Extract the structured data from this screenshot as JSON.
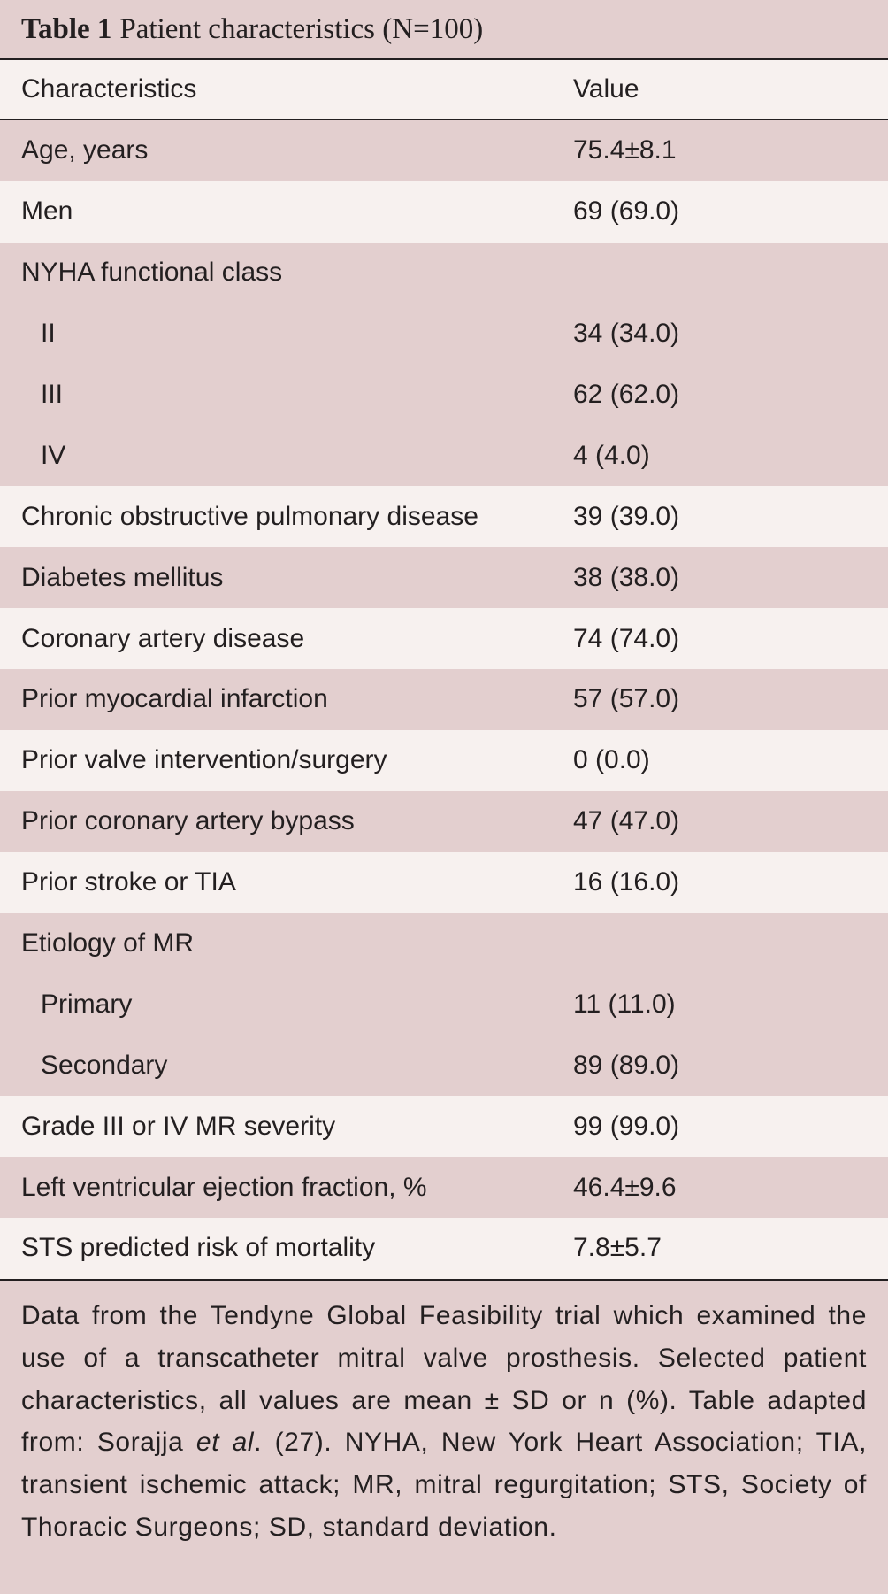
{
  "table": {
    "title_label": "Table 1",
    "title_text": "Patient characteristics (N=100)",
    "header": {
      "characteristics": "Characteristics",
      "value": "Value"
    },
    "rows": [
      {
        "label": "Age, years",
        "value": "75.4±8.1",
        "shade": "dark",
        "sub": false
      },
      {
        "label": "Men",
        "value": "69 (69.0)",
        "shade": "light",
        "sub": false
      },
      {
        "label": "NYHA functional class",
        "value": "",
        "shade": "dark",
        "sub": false
      },
      {
        "label": "II",
        "value": "34 (34.0)",
        "shade": "dark",
        "sub": true
      },
      {
        "label": "III",
        "value": "62 (62.0)",
        "shade": "dark",
        "sub": true
      },
      {
        "label": "IV",
        "value": "4 (4.0)",
        "shade": "dark",
        "sub": true
      },
      {
        "label": "Chronic obstructive pulmonary disease",
        "value": "39 (39.0)",
        "shade": "light",
        "sub": false
      },
      {
        "label": "Diabetes mellitus",
        "value": "38 (38.0)",
        "shade": "dark",
        "sub": false
      },
      {
        "label": "Coronary artery disease",
        "value": "74 (74.0)",
        "shade": "light",
        "sub": false
      },
      {
        "label": "Prior myocardial infarction",
        "value": "57 (57.0)",
        "shade": "dark",
        "sub": false
      },
      {
        "label": "Prior valve intervention/surgery",
        "value": "0 (0.0)",
        "shade": "light",
        "sub": false
      },
      {
        "label": "Prior coronary artery bypass",
        "value": "47 (47.0)",
        "shade": "dark",
        "sub": false
      },
      {
        "label": "Prior stroke or TIA",
        "value": "16 (16.0)",
        "shade": "light",
        "sub": false
      },
      {
        "label": "Etiology of MR",
        "value": "",
        "shade": "dark",
        "sub": false
      },
      {
        "label": "Primary",
        "value": "11 (11.0)",
        "shade": "dark",
        "sub": true
      },
      {
        "label": "Secondary",
        "value": "89 (89.0)",
        "shade": "dark",
        "sub": true
      },
      {
        "label": "Grade III or IV MR severity",
        "value": "99 (99.0)",
        "shade": "light",
        "sub": false
      },
      {
        "label": "Left ventricular ejection fraction, %",
        "value": "46.4±9.6",
        "shade": "dark",
        "sub": false
      },
      {
        "label": "STS predicted risk of mortality",
        "value": "7.8±5.7",
        "shade": "light",
        "sub": false
      }
    ],
    "footnote": {
      "before_italic": "Data from the Tendyne Global Feasibility trial which examined the use of a transcatheter mitral valve prosthesis. Selected patient characteristics, all values are mean ± SD or n (%). Table adapted from: Sorajja ",
      "italic": "et al",
      "after_italic": ". (27). NYHA, New York Heart Association; TIA, transient ischemic attack; MR, mitral regurgitation; STS, Society of Thoracic Surgeons; SD, standard deviation."
    }
  }
}
